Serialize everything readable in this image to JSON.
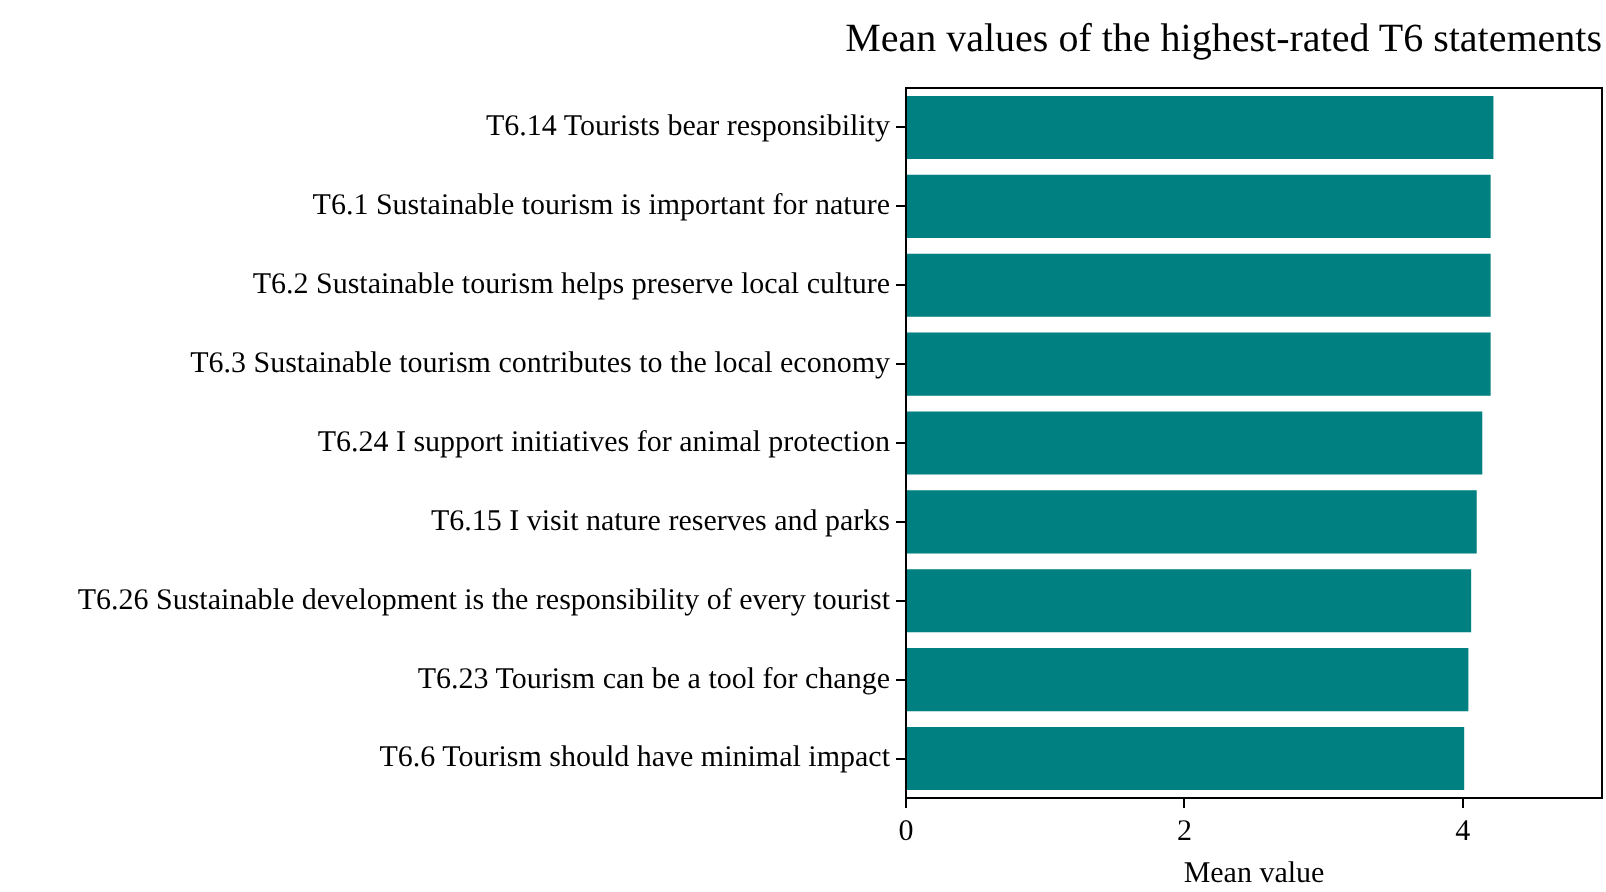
{
  "chart_data": {
    "type": "bar",
    "orientation": "horizontal",
    "title": "Mean values of the highest-rated T6 statements",
    "xlabel": "Mean value",
    "categories": [
      "T6.14 Tourists bear responsibility",
      "T6.1 Sustainable tourism is important for nature",
      "T6.2 Sustainable tourism helps preserve local culture",
      "T6.3 Sustainable tourism contributes to the local economy",
      "T6.24 I support initiatives for animal protection",
      "T6.15 I visit nature reserves and parks",
      "T6.26 Sustainable development is the responsibility of every tourist",
      "T6.23 Tourism can be a tool for change",
      "T6.6 Tourism should have minimal impact"
    ],
    "values": [
      4.22,
      4.2,
      4.2,
      4.2,
      4.14,
      4.1,
      4.06,
      4.04,
      4.01
    ],
    "color": "#008080",
    "xlim": [
      0,
      5
    ],
    "xticks": [
      0,
      2,
      4
    ],
    "grid": false,
    "legend": false
  }
}
